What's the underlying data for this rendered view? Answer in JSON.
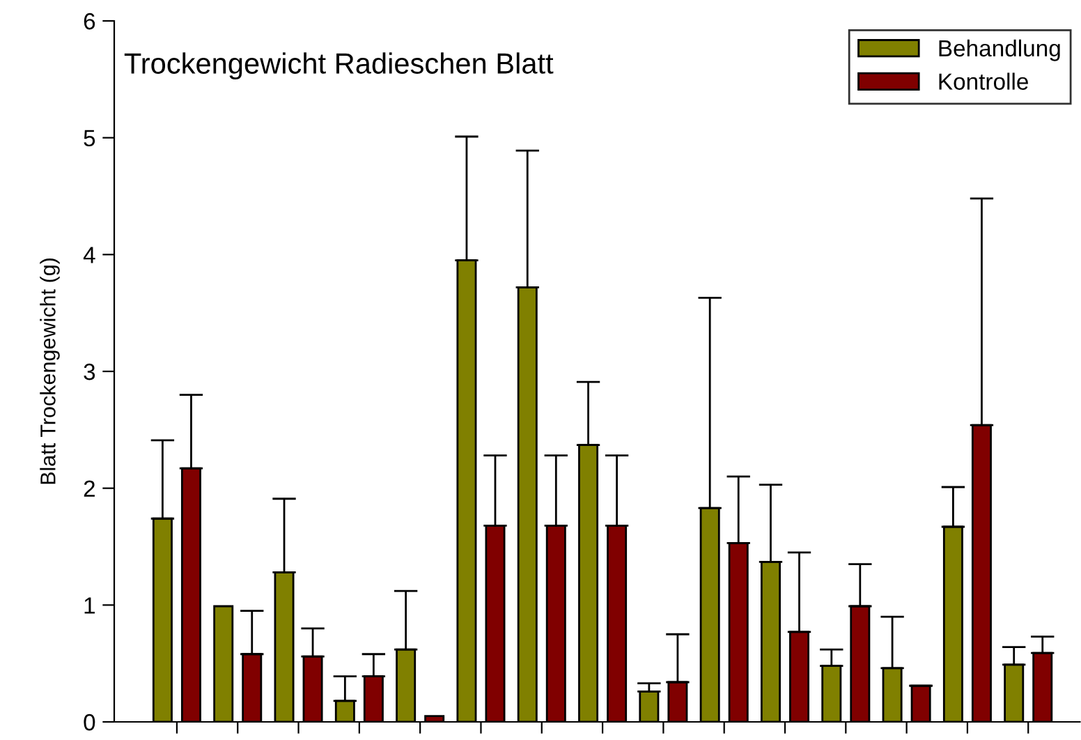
{
  "chart_data": {
    "type": "bar",
    "title": "Trockengewicht Radieschen Blatt",
    "ylabel": "Blatt Trockengewicht (g)",
    "categories": [
      null,
      null,
      null,
      null,
      null,
      null,
      null,
      null,
      null,
      null,
      null,
      null,
      null,
      null,
      null
    ],
    "series": [
      {
        "name": "Behandlung",
        "color": "#808000",
        "values": [
          1.74,
          0.99,
          1.28,
          0.18,
          0.62,
          3.95,
          3.72,
          2.37,
          0.26,
          1.83,
          1.37,
          0.48,
          0.46,
          1.67,
          0.49
        ],
        "errors": [
          [
            1.74,
            2.41
          ],
          null,
          [
            1.28,
            1.91
          ],
          [
            0.18,
            0.39
          ],
          [
            0.62,
            1.12
          ],
          [
            3.95,
            5.01
          ],
          [
            3.72,
            4.89
          ],
          [
            2.37,
            2.91
          ],
          [
            0.26,
            0.33
          ],
          [
            1.83,
            3.63
          ],
          [
            1.37,
            2.03
          ],
          [
            0.48,
            0.62
          ],
          [
            0.46,
            0.9
          ],
          [
            1.67,
            2.01
          ],
          [
            0.49,
            0.64
          ]
        ]
      },
      {
        "name": "Kontrolle",
        "color": "#800000",
        "values": [
          2.17,
          0.58,
          0.56,
          0.39,
          0.05,
          1.68,
          1.68,
          1.68,
          0.34,
          1.53,
          0.77,
          0.99,
          0.31,
          2.54,
          0.59
        ],
        "errors": [
          [
            2.17,
            2.8
          ],
          [
            0.58,
            0.95
          ],
          [
            0.56,
            0.8
          ],
          [
            0.39,
            0.58
          ],
          null,
          [
            1.68,
            2.28
          ],
          [
            1.68,
            2.28
          ],
          [
            1.68,
            2.28
          ],
          [
            0.34,
            0.75
          ],
          [
            1.53,
            2.1
          ],
          [
            0.77,
            1.45
          ],
          [
            0.99,
            1.35
          ],
          [
            0.31,
            0.31
          ],
          [
            2.54,
            4.48
          ],
          [
            0.59,
            0.73
          ]
        ]
      }
    ],
    "ylim": [
      0,
      6
    ],
    "yticks": [
      0,
      1,
      2,
      3,
      4,
      5,
      6
    ],
    "legend": "top right",
    "grid": false
  }
}
